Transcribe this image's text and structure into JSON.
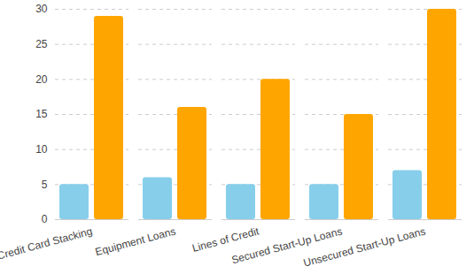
{
  "chart_data": {
    "type": "bar",
    "categories": [
      "Credit Card Stacking",
      "Equipment Loans",
      "Lines of Credit",
      "Secured Start-Up Loans",
      "Unsecured Start-Up Loans"
    ],
    "series": [
      {
        "color": "#87ceeb",
        "values": [
          5,
          6,
          5,
          5,
          7
        ]
      },
      {
        "color": "#ffa500",
        "values": [
          29,
          16,
          20,
          15,
          30
        ]
      }
    ],
    "ylim": [
      0,
      30
    ],
    "yticks": [
      0,
      5,
      10,
      15,
      20,
      25,
      30
    ],
    "grid": true
  }
}
